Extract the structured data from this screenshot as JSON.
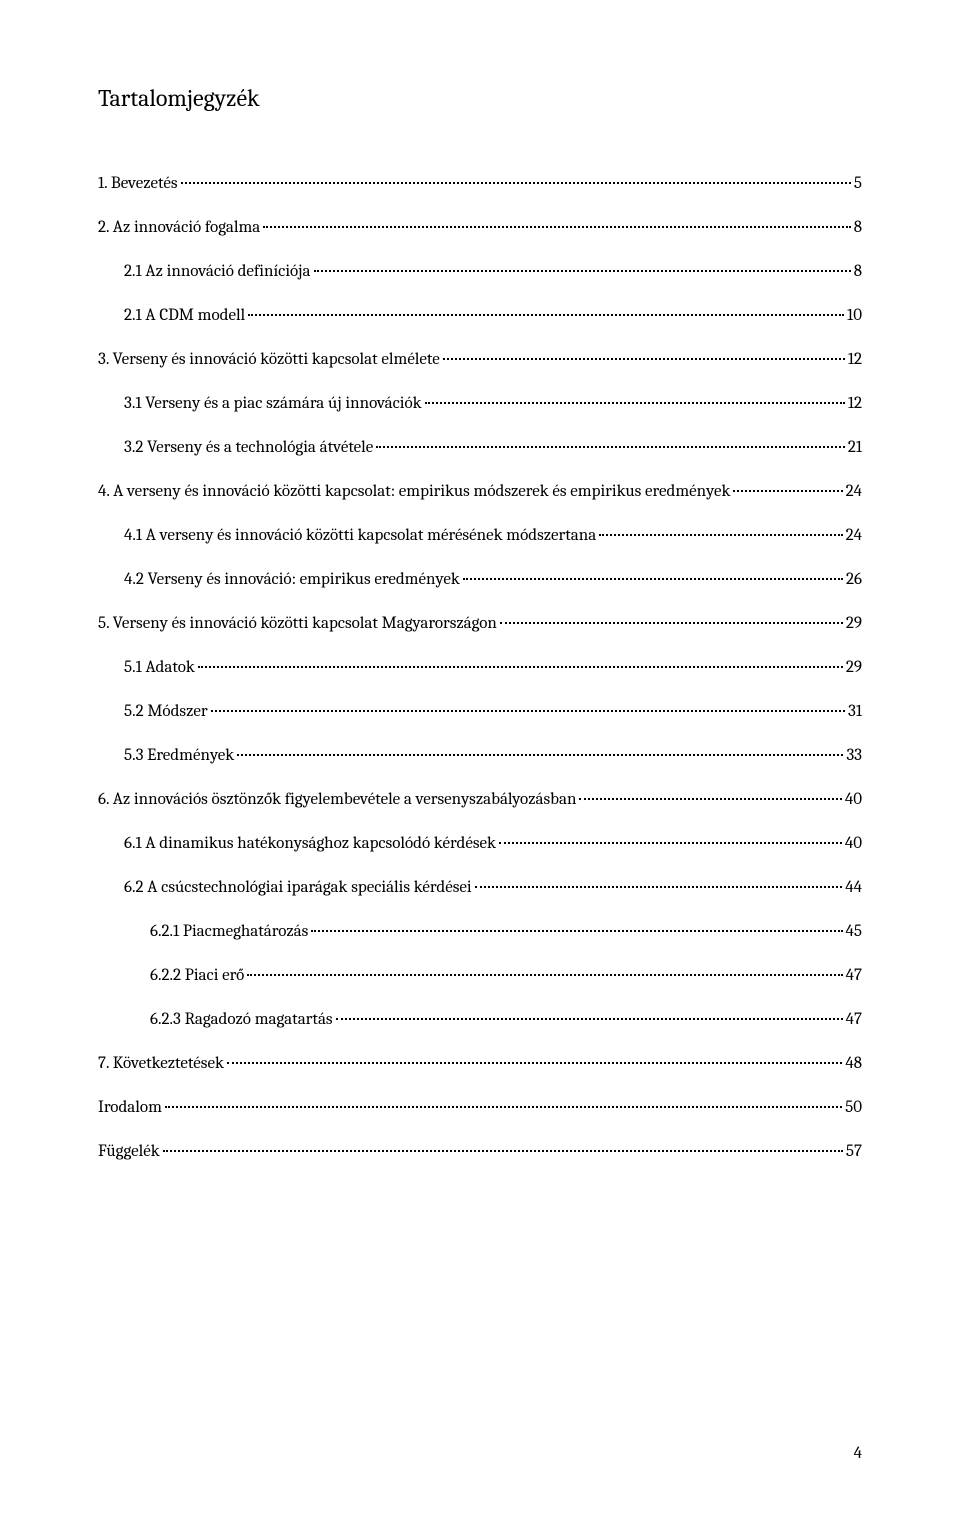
{
  "title": "Tartalomjegyzék",
  "page_number": "4",
  "colors": {
    "background": "#ffffff",
    "text": "#000000"
  },
  "typography": {
    "title_fontsize": 24,
    "entry_fontsize": 17,
    "font_family": "Cambria, Georgia, serif"
  },
  "toc_entries": [
    {
      "level": 0,
      "label": "1. Bevezetés",
      "page": "5"
    },
    {
      "level": 0,
      "label": "2. Az innováció fogalma",
      "page": "8"
    },
    {
      "level": 1,
      "label": "2.1 Az innováció definíciója",
      "page": "8"
    },
    {
      "level": 1,
      "label": "2.1 A CDM modell",
      "page": "10"
    },
    {
      "level": 0,
      "label": "3. Verseny és innováció közötti kapcsolat elmélete",
      "page": "12"
    },
    {
      "level": 1,
      "label": "3.1 Verseny és a piac számára új innovációk",
      "page": "12"
    },
    {
      "level": 1,
      "label": "3.2 Verseny és a technológia átvétele",
      "page": "21"
    },
    {
      "level": 0,
      "label": "4. A verseny és innováció közötti kapcsolat: empirikus módszerek és empirikus eredmények",
      "page": "24"
    },
    {
      "level": 1,
      "label": "4.1 A verseny és innováció közötti kapcsolat mérésének módszertana",
      "page": "24"
    },
    {
      "level": 1,
      "label": "4.2 Verseny és innováció: empirikus eredmények",
      "page": "26"
    },
    {
      "level": 0,
      "label": "5. Verseny és innováció közötti kapcsolat Magyarországon",
      "page": "29"
    },
    {
      "level": 1,
      "label": "5.1 Adatok",
      "page": "29"
    },
    {
      "level": 1,
      "label": "5.2 Módszer",
      "page": "31"
    },
    {
      "level": 1,
      "label": "5.3 Eredmények",
      "page": "33"
    },
    {
      "level": 0,
      "label": "6. Az innovációs ösztönzők figyelembevétele a versenyszabályozásban",
      "page": "40"
    },
    {
      "level": 1,
      "label": "6.1 A dinamikus hatékonysághoz kapcsolódó kérdések",
      "page": "40"
    },
    {
      "level": 1,
      "label": "6.2 A csúcstechnológiai iparágak speciális kérdései",
      "page": "44"
    },
    {
      "level": 2,
      "label": "6.2.1 Piacmeghatározás",
      "page": "45"
    },
    {
      "level": 2,
      "label": "6.2.2 Piaci erő",
      "page": "47"
    },
    {
      "level": 2,
      "label": "6.2.3 Ragadozó magatartás",
      "page": "47"
    },
    {
      "level": 0,
      "label": "7. Következtetések",
      "page": "48"
    },
    {
      "level": 0,
      "label": "Irodalom",
      "page": "50"
    },
    {
      "level": 0,
      "label": "Függelék",
      "page": "57"
    }
  ]
}
